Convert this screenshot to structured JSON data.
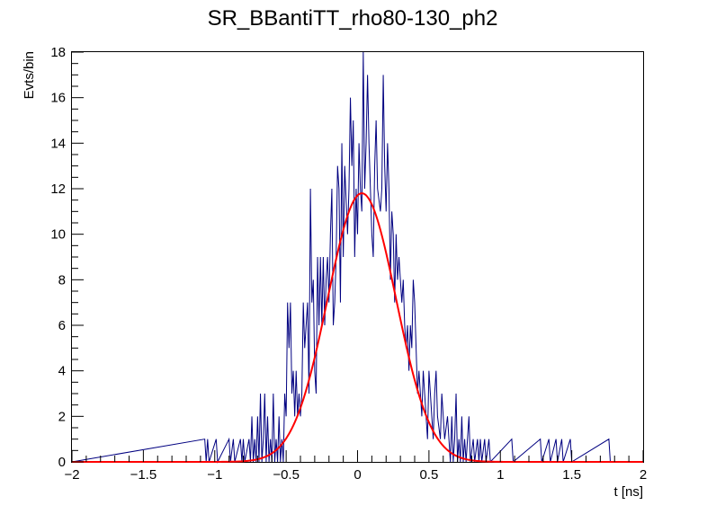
{
  "chart_data": {
    "type": "histogram",
    "title": "SR_BBantiTT_rho80-130_ph2",
    "xlabel": "t [ns]",
    "ylabel": "Evts/bin",
    "xlim": [
      -2,
      2
    ],
    "ylim": [
      0,
      18
    ],
    "x_ticks": [
      "−2",
      "−1.5",
      "−1",
      "−0.5",
      "0",
      "0.5",
      "1",
      "1.5",
      "2"
    ],
    "y_ticks": [
      "0",
      "2",
      "4",
      "6",
      "8",
      "10",
      "12",
      "14",
      "16",
      "18"
    ],
    "bin_width": 0.01,
    "grid": false,
    "series": [
      {
        "kind": "histogram",
        "color": "#000080",
        "bins": [
          [
            -1.07,
            1
          ],
          [
            -1.05,
            1
          ],
          [
            -0.99,
            1
          ],
          [
            -0.9,
            1
          ],
          [
            -0.87,
            1
          ],
          [
            -0.82,
            1
          ],
          [
            -0.8,
            1
          ],
          [
            -0.76,
            1
          ],
          [
            -0.74,
            2
          ],
          [
            -0.72,
            1
          ],
          [
            -0.7,
            2
          ],
          [
            -0.68,
            3
          ],
          [
            -0.66,
            1
          ],
          [
            -0.65,
            3
          ],
          [
            -0.63,
            2
          ],
          [
            -0.61,
            1
          ],
          [
            -0.59,
            3
          ],
          [
            -0.57,
            1
          ],
          [
            -0.55,
            2
          ],
          [
            -0.53,
            1
          ],
          [
            -0.51,
            3
          ],
          [
            -0.5,
            2
          ],
          [
            -0.49,
            7
          ],
          [
            -0.48,
            5
          ],
          [
            -0.47,
            7
          ],
          [
            -0.46,
            3
          ],
          [
            -0.45,
            4
          ],
          [
            -0.44,
            2
          ],
          [
            -0.43,
            4
          ],
          [
            -0.42,
            2
          ],
          [
            -0.41,
            3
          ],
          [
            -0.4,
            2
          ],
          [
            -0.39,
            3
          ],
          [
            -0.38,
            7
          ],
          [
            -0.37,
            5
          ],
          [
            -0.36,
            5
          ],
          [
            -0.35,
            7
          ],
          [
            -0.34,
            3
          ],
          [
            -0.33,
            12
          ],
          [
            -0.32,
            7
          ],
          [
            -0.31,
            8
          ],
          [
            -0.3,
            4
          ],
          [
            -0.29,
            3
          ],
          [
            -0.28,
            9
          ],
          [
            -0.27,
            6
          ],
          [
            -0.26,
            9
          ],
          [
            -0.25,
            6
          ],
          [
            -0.24,
            9
          ],
          [
            -0.23,
            6
          ],
          [
            -0.22,
            8
          ],
          [
            -0.21,
            9
          ],
          [
            -0.2,
            7
          ],
          [
            -0.19,
            10
          ],
          [
            -0.18,
            12
          ],
          [
            -0.17,
            6
          ],
          [
            -0.16,
            7
          ],
          [
            -0.15,
            9
          ],
          [
            -0.14,
            13
          ],
          [
            -0.13,
            12
          ],
          [
            -0.12,
            7
          ],
          [
            -0.11,
            14
          ],
          [
            -0.1,
            9
          ],
          [
            -0.09,
            13
          ],
          [
            -0.08,
            13
          ],
          [
            -0.07,
            10
          ],
          [
            -0.06,
            12
          ],
          [
            -0.05,
            16
          ],
          [
            -0.04,
            13
          ],
          [
            -0.03,
            15
          ],
          [
            -0.02,
            9
          ],
          [
            -0.01,
            12
          ],
          [
            0.0,
            10
          ],
          [
            0.01,
            14
          ],
          [
            0.02,
            12
          ],
          [
            0.03,
            11
          ],
          [
            0.04,
            18
          ],
          [
            0.05,
            12
          ],
          [
            0.06,
            14
          ],
          [
            0.07,
            17
          ],
          [
            0.08,
            14
          ],
          [
            0.09,
            12
          ],
          [
            0.1,
            10
          ],
          [
            0.11,
            9
          ],
          [
            0.12,
            13
          ],
          [
            0.13,
            15
          ],
          [
            0.14,
            12
          ],
          [
            0.15,
            12
          ],
          [
            0.16,
            11
          ],
          [
            0.17,
            12
          ],
          [
            0.18,
            17
          ],
          [
            0.19,
            13
          ],
          [
            0.2,
            11
          ],
          [
            0.21,
            14
          ],
          [
            0.22,
            12
          ],
          [
            0.23,
            8
          ],
          [
            0.24,
            11
          ],
          [
            0.25,
            10
          ],
          [
            0.26,
            7
          ],
          [
            0.27,
            10
          ],
          [
            0.28,
            8
          ],
          [
            0.29,
            9
          ],
          [
            0.3,
            8
          ],
          [
            0.31,
            7
          ],
          [
            0.32,
            8
          ],
          [
            0.33,
            6
          ],
          [
            0.34,
            5
          ],
          [
            0.35,
            6
          ],
          [
            0.36,
            4
          ],
          [
            0.37,
            6
          ],
          [
            0.38,
            5
          ],
          [
            0.39,
            8
          ],
          [
            0.4,
            7
          ],
          [
            0.41,
            5
          ],
          [
            0.42,
            3
          ],
          [
            0.43,
            4
          ],
          [
            0.44,
            3
          ],
          [
            0.45,
            2
          ],
          [
            0.46,
            4
          ],
          [
            0.47,
            3
          ],
          [
            0.48,
            2
          ],
          [
            0.49,
            1
          ],
          [
            0.5,
            4
          ],
          [
            0.51,
            3
          ],
          [
            0.52,
            2
          ],
          [
            0.53,
            1
          ],
          [
            0.54,
            3
          ],
          [
            0.55,
            4
          ],
          [
            0.56,
            2
          ],
          [
            0.57,
            2
          ],
          [
            0.58,
            1
          ],
          [
            0.59,
            3
          ],
          [
            0.6,
            2
          ],
          [
            0.61,
            1
          ],
          [
            0.62,
            1
          ],
          [
            0.63,
            2
          ],
          [
            0.64,
            1
          ],
          [
            0.66,
            2
          ],
          [
            0.68,
            1
          ],
          [
            0.69,
            3
          ],
          [
            0.71,
            1
          ],
          [
            0.73,
            2
          ],
          [
            0.75,
            1
          ],
          [
            0.77,
            1
          ],
          [
            0.78,
            2
          ],
          [
            0.81,
            1
          ],
          [
            0.84,
            1
          ],
          [
            0.86,
            1
          ],
          [
            0.89,
            1
          ],
          [
            0.92,
            1
          ],
          [
            1.08,
            1
          ],
          [
            1.28,
            1
          ],
          [
            1.34,
            1
          ],
          [
            1.39,
            1
          ],
          [
            1.43,
            1
          ],
          [
            1.49,
            1
          ],
          [
            1.76,
            1
          ]
        ]
      },
      {
        "kind": "gaussian-fit",
        "color": "#ff0000",
        "amplitude": 11.8,
        "mean": 0.03,
        "sigma": 0.24
      }
    ]
  }
}
